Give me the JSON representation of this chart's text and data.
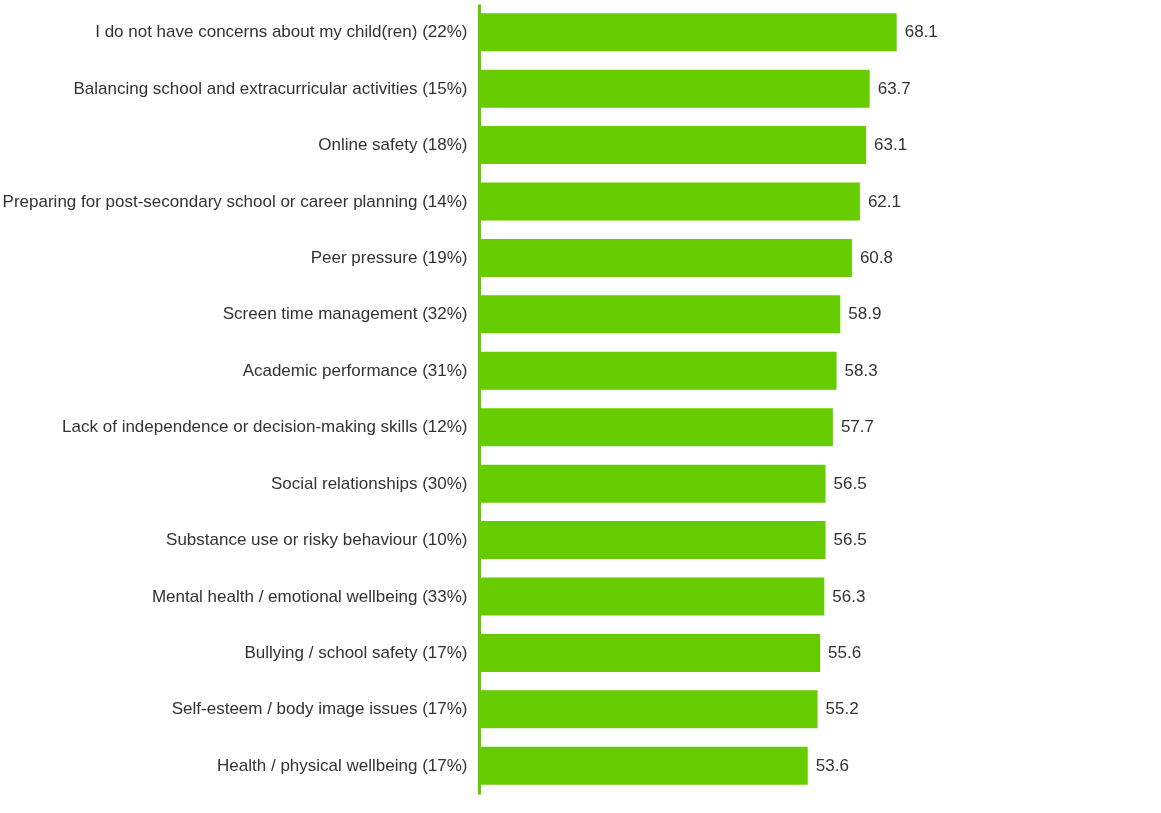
{
  "chart_data": {
    "type": "bar",
    "orientation": "horizontal",
    "categories": [
      "I do not have concerns about my child(ren) (22%)",
      "Balancing school and extracurricular activities (15%)",
      "Online safety (18%)",
      "Preparing for post-secondary school or career planning (14%)",
      "Peer pressure (19%)",
      "Screen time management (32%)",
      "Academic performance (31%)",
      "Lack of independence or decision-making skills (12%)",
      "Social relationships (30%)",
      "Substance use or risky behaviour (10%)",
      "Mental health / emotional wellbeing (33%)",
      "Bullying / school safety (17%)",
      "Self-esteem / body image issues (17%)",
      "Health / physical wellbeing (17%)"
    ],
    "values": [
      68.1,
      63.7,
      63.1,
      62.1,
      60.8,
      58.9,
      58.3,
      57.7,
      56.5,
      56.5,
      56.3,
      55.6,
      55.2,
      53.6
    ],
    "color": "#66cc00",
    "xlim": [
      0,
      75
    ],
    "data_labels": true
  }
}
